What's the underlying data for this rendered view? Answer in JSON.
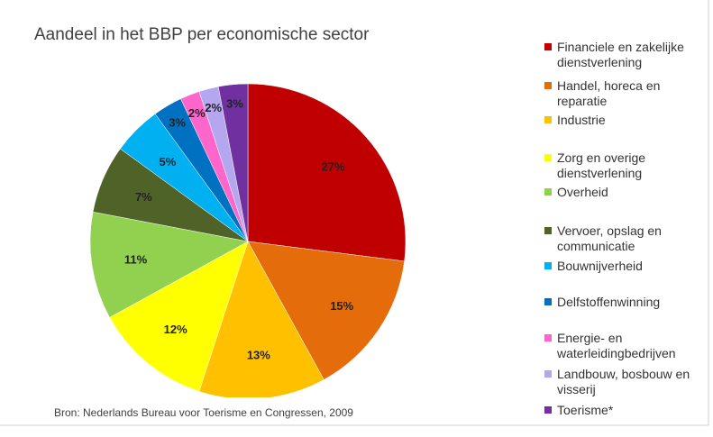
{
  "chart_data": {
    "type": "pie",
    "title": "Aandeel in het BBP per economische sector",
    "source": "Bron: Nederlands Bureau voor Toerisme en Congressen, 2009",
    "categories": [
      "Financiele en zakelijke dienstverlening",
      "Handel, horeca en reparatie",
      "Industrie",
      "Zorg en overige dienstverlening",
      "Overheid",
      "Vervoer, opslag en communicatie",
      "Bouwnijverheid",
      "Delfstoffenwinning",
      "Energie- en waterleidingbedrijven",
      "Landbouw, bosbouw en visserij",
      "Toerisme*"
    ],
    "values": [
      27,
      15,
      13,
      12,
      11,
      7,
      5,
      3,
      2,
      2,
      3
    ],
    "value_labels": [
      "27%",
      "15%",
      "13%",
      "12%",
      "11%",
      "7%",
      "5%",
      "3%",
      "2%",
      "2%",
      "3%"
    ],
    "colors": [
      "#c00000",
      "#e46c0a",
      "#ffc000",
      "#ffff00",
      "#92d050",
      "#4f6228",
      "#00b0f0",
      "#0070c0",
      "#ff66cc",
      "#b4a7f0",
      "#7030a0"
    ],
    "legend": "right"
  }
}
